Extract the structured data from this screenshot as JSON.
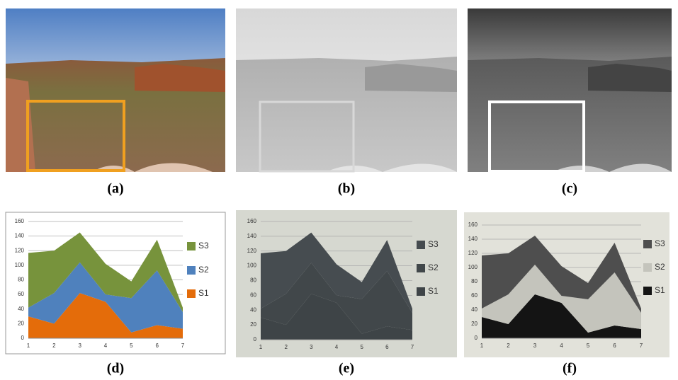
{
  "photos": [
    {
      "caption": "(a)"
    },
    {
      "caption": "(b)"
    },
    {
      "caption": "(c)"
    }
  ],
  "chart_data": [
    {
      "type": "area",
      "caption": "(d)",
      "stacked": true,
      "background": "#ffffff",
      "x": [
        1,
        2,
        3,
        4,
        5,
        6,
        7
      ],
      "xlim": [
        1,
        7
      ],
      "xticks": [
        1,
        2,
        3,
        4,
        5,
        6,
        7
      ],
      "ylim": [
        0,
        160
      ],
      "yticks": [
        0,
        20,
        40,
        60,
        80,
        100,
        120,
        140,
        160
      ],
      "grid": true,
      "series": [
        {
          "name": "S1",
          "color": "#e46c0a",
          "values": [
            30,
            20,
            62,
            50,
            8,
            18,
            13
          ]
        },
        {
          "name": "S2",
          "color": "#4f81bd",
          "values": [
            12,
            42,
            42,
            10,
            47,
            75,
            23
          ]
        },
        {
          "name": "S3",
          "color": "#77933c",
          "values": [
            75,
            58,
            41,
            42,
            23,
            42,
            6
          ]
        }
      ]
    },
    {
      "type": "area",
      "caption": "(e)",
      "stacked": true,
      "background": "#d6d8d0",
      "x": [
        1,
        2,
        3,
        4,
        5,
        6,
        7
      ],
      "xlim": [
        1,
        7
      ],
      "xticks": [
        1,
        2,
        3,
        4,
        5,
        6,
        7
      ],
      "ylim": [
        0,
        160
      ],
      "yticks": [
        0,
        20,
        40,
        60,
        80,
        100,
        120,
        140,
        160
      ],
      "grid": true,
      "series": [
        {
          "name": "S1",
          "color": "#3e4447",
          "values": [
            30,
            20,
            62,
            50,
            8,
            18,
            13
          ]
        },
        {
          "name": "S2",
          "color": "#41474a",
          "values": [
            12,
            42,
            42,
            10,
            47,
            75,
            23
          ]
        },
        {
          "name": "S3",
          "color": "#464c50",
          "values": [
            75,
            58,
            41,
            42,
            23,
            42,
            6
          ]
        }
      ]
    },
    {
      "type": "area",
      "caption": "(f)",
      "stacked": true,
      "background": "#e2e2da",
      "x": [
        1,
        2,
        3,
        4,
        5,
        6,
        7
      ],
      "xlim": [
        1,
        7
      ],
      "xticks": [
        1,
        2,
        3,
        4,
        5,
        6,
        7
      ],
      "ylim": [
        0,
        160
      ],
      "yticks": [
        0,
        20,
        40,
        60,
        80,
        100,
        120,
        140,
        160
      ],
      "grid": true,
      "series": [
        {
          "name": "S1",
          "color": "#141414",
          "values": [
            30,
            20,
            62,
            50,
            8,
            18,
            13
          ]
        },
        {
          "name": "S2",
          "color": "#c4c4bc",
          "values": [
            12,
            42,
            42,
            10,
            47,
            75,
            23
          ]
        },
        {
          "name": "S3",
          "color": "#4e4e4e",
          "values": [
            75,
            58,
            41,
            42,
            23,
            42,
            6
          ]
        }
      ]
    }
  ]
}
